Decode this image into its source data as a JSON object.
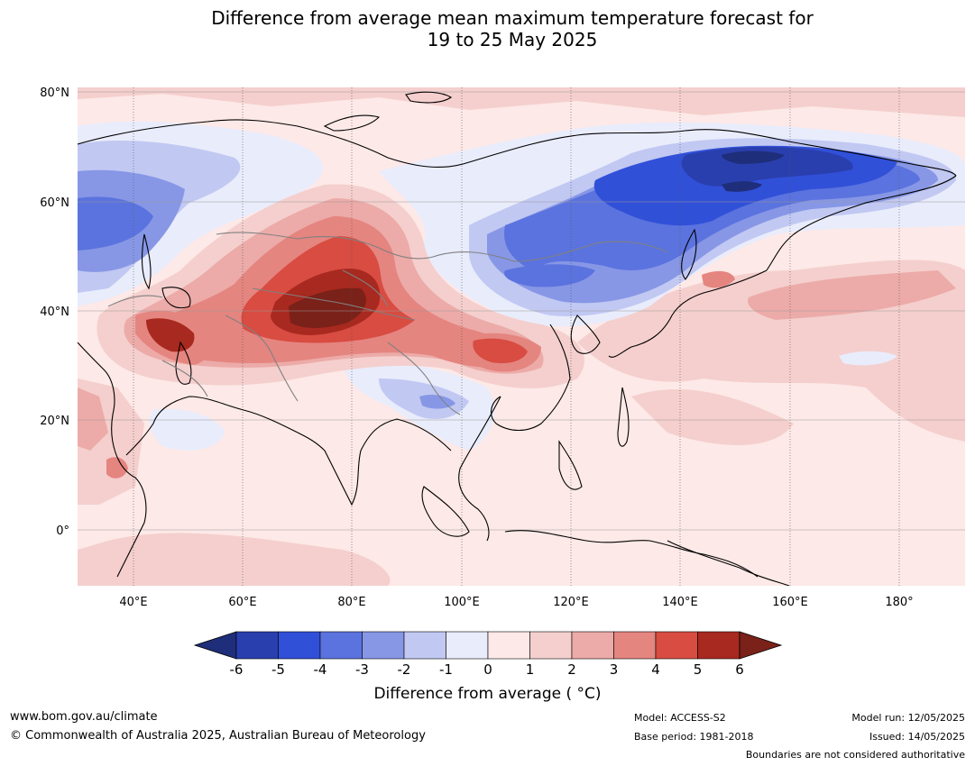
{
  "title": {
    "line1": "Difference from average mean maximum temperature forecast for",
    "line2": "19 to 25 May 2025"
  },
  "map": {
    "lat_labels": [
      "80°N",
      "60°N",
      "40°N",
      "20°N",
      "0°"
    ],
    "lon_labels": [
      "40°E",
      "60°E",
      "80°E",
      "100°E",
      "120°E",
      "140°E",
      "160°E",
      "180°"
    ],
    "colors": {
      "m6": "#1f2e7a",
      "m5": "#2a3fae",
      "m4": "#3150d8",
      "m3": "#5b73de",
      "m2": "#8797e6",
      "m1": "#c1c8f2",
      "m0": "#e9ecfb",
      "p0": "#fde9e7",
      "p1": "#f4cfcd",
      "p2": "#ecaba8",
      "p3": "#e58580",
      "p4": "#d84c42",
      "p5": "#a8291f",
      "p6": "#7a2119",
      "land": "#000000",
      "border": "#808080"
    }
  },
  "colorbar": {
    "ticks": [
      "-6",
      "-5",
      "-4",
      "-3",
      "-2",
      "-1",
      "0",
      "1",
      "2",
      "3",
      "4",
      "5",
      "6"
    ],
    "label": "Difference from average ( °C)",
    "colors": [
      "#1f2e7a",
      "#2a3fae",
      "#3150d8",
      "#5b73de",
      "#8797e6",
      "#c1c8f2",
      "#e9ecfb",
      "#fde9e7",
      "#f4cfcd",
      "#ecaba8",
      "#e58580",
      "#d84c42",
      "#a8291f",
      "#7a2119"
    ]
  },
  "footer": {
    "url": "www.bom.gov.au/climate",
    "copyright": "© Commonwealth of Australia 2025, Australian Bureau of Meteorology",
    "model": "Model: ACCESS-S2",
    "base_period": "Base period: 1981-2018",
    "model_run": "Model run: 12/05/2025",
    "issued": "Issued: 14/05/2025",
    "disclaimer": "Boundaries are not considered authoritative"
  }
}
